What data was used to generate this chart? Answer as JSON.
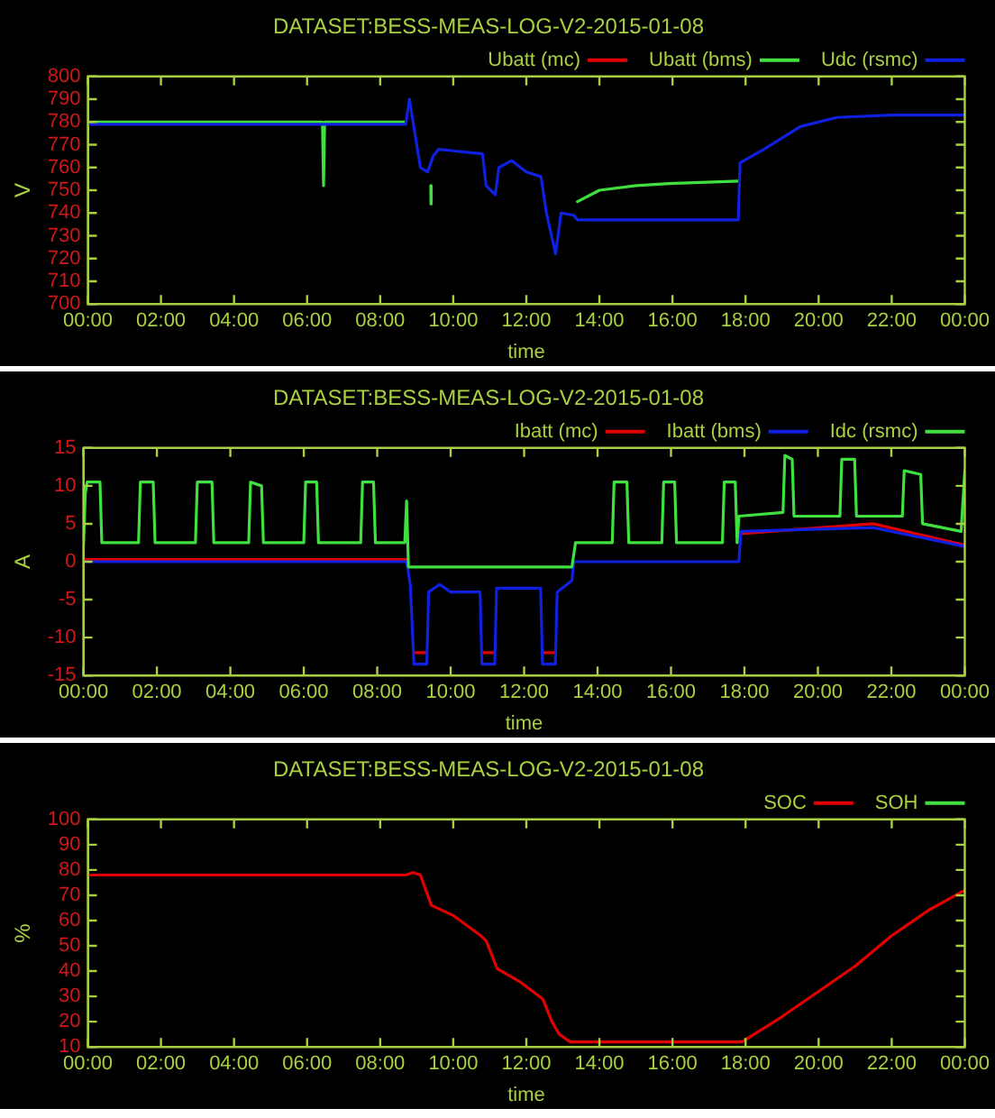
{
  "chart_data": [
    {
      "type": "line",
      "title": "DATASET:BESS-MEAS-LOG-V2-2015-01-08",
      "xlabel": "time",
      "ylabel": "V",
      "xlim": [
        0,
        24
      ],
      "xticks": [
        {
          "value": 0,
          "label": "00:00"
        },
        {
          "value": 2,
          "label": "02:00"
        },
        {
          "value": 4,
          "label": "04:00"
        },
        {
          "value": 6,
          "label": "06:00"
        },
        {
          "value": 8,
          "label": "08:00"
        },
        {
          "value": 10,
          "label": "10:00"
        },
        {
          "value": 12,
          "label": "12:00"
        },
        {
          "value": 14,
          "label": "14:00"
        },
        {
          "value": 16,
          "label": "16:00"
        },
        {
          "value": 18,
          "label": "18:00"
        },
        {
          "value": 20,
          "label": "20:00"
        },
        {
          "value": 22,
          "label": "22:00"
        },
        {
          "value": 24,
          "label": "00:00"
        }
      ],
      "ylim": [
        700,
        800
      ],
      "yticks": [
        700,
        710,
        720,
        730,
        740,
        750,
        760,
        770,
        780,
        790,
        800
      ],
      "grid": false,
      "legend": "top right",
      "marker": "none",
      "line_style": "solid",
      "series": [
        {
          "name": "Ubatt (mc)",
          "color": "#e00000"
        },
        {
          "name": "Ubatt (bms)",
          "color": "#40e040",
          "x": [
            0,
            6.42,
            6.45,
            6.48,
            8.7,
            9,
            9.385,
            9.39,
            9.395,
            11,
            13.4,
            14,
            15,
            16,
            17.8
          ],
          "values": [
            780,
            780,
            752,
            780,
            780,
            null,
            752,
            744,
            752,
            null,
            745,
            750,
            752,
            753,
            754
          ]
        },
        {
          "name": "Udc (rsmc)",
          "color": "#1020e0",
          "x": [
            0,
            8.7,
            8.8,
            8.95,
            9.1,
            9.3,
            9.45,
            9.6,
            10.8,
            10.9,
            11.15,
            11.25,
            11.6,
            12.0,
            12.4,
            12.55,
            12.8,
            12.95,
            13.3,
            13.4,
            17.8,
            17.85,
            18.5,
            19.5,
            20.5,
            22,
            24
          ],
          "values": [
            779,
            779,
            790,
            775,
            760,
            758,
            765,
            768,
            766,
            752,
            748,
            760,
            763,
            758,
            756,
            740,
            722,
            740,
            739,
            737,
            737,
            762,
            768,
            778,
            782,
            783,
            783
          ]
        }
      ]
    },
    {
      "type": "line",
      "title": "DATASET:BESS-MEAS-LOG-V2-2015-01-08",
      "xlabel": "time",
      "ylabel": "A",
      "xlim": [
        0,
        24
      ],
      "xticks": [
        {
          "value": 0,
          "label": "00:00"
        },
        {
          "value": 2,
          "label": "02:00"
        },
        {
          "value": 4,
          "label": "04:00"
        },
        {
          "value": 6,
          "label": "06:00"
        },
        {
          "value": 8,
          "label": "08:00"
        },
        {
          "value": 10,
          "label": "10:00"
        },
        {
          "value": 12,
          "label": "12:00"
        },
        {
          "value": 14,
          "label": "14:00"
        },
        {
          "value": 16,
          "label": "16:00"
        },
        {
          "value": 18,
          "label": "18:00"
        },
        {
          "value": 20,
          "label": "20:00"
        },
        {
          "value": 22,
          "label": "22:00"
        },
        {
          "value": 24,
          "label": "00:00"
        }
      ],
      "ylim": [
        -15,
        15
      ],
      "yticks": [
        -15,
        -10,
        -5,
        0,
        5,
        10,
        15
      ],
      "grid": false,
      "legend": "top right",
      "marker": "none",
      "line_style": "solid",
      "series": [
        {
          "name": "Ibatt (mc)",
          "color": "#e00000",
          "x": [
            0,
            8.8,
            8.9,
            9,
            9.35,
            9.7,
            10.85,
            11.2,
            12,
            12.5,
            12.85,
            13.5,
            17.9,
            21.5,
            24
          ],
          "values": [
            0.3,
            0.3,
            null,
            -12,
            -12,
            null,
            -12,
            -12,
            null,
            -12,
            -12,
            null,
            3.7,
            5,
            2.2
          ]
        },
        {
          "name": "Ibatt (bms)",
          "color": "#1020e0",
          "x": [
            0,
            8.8,
            8.9,
            9,
            9.35,
            9.4,
            9.7,
            10,
            10.8,
            10.85,
            11.2,
            11.25,
            12.45,
            12.5,
            12.85,
            12.9,
            13.3,
            13.35,
            17.85,
            17.9,
            21.5,
            24
          ],
          "values": [
            0,
            0,
            -3,
            -13.5,
            -13.5,
            -4,
            -3,
            -4,
            -4,
            -13.5,
            -13.5,
            -3.5,
            -3.5,
            -13.5,
            -13.5,
            -4,
            -2.5,
            0,
            0,
            4,
            4.5,
            2
          ]
        },
        {
          "name": "Idc (rsmc)",
          "color": "#40e040",
          "x": [
            0,
            0.05,
            0.1,
            0.45,
            0.5,
            1.5,
            1.55,
            1.9,
            1.95,
            3.05,
            3.1,
            3.5,
            3.55,
            4.5,
            4.55,
            4.85,
            4.9,
            6,
            6.05,
            6.35,
            6.4,
            7.55,
            7.6,
            7.9,
            7.95,
            8.75,
            8.8,
            8.85,
            13.3,
            13.4,
            14.4,
            14.45,
            14.8,
            14.85,
            15.75,
            15.8,
            16.1,
            16.15,
            17.4,
            17.45,
            17.75,
            17.8,
            17.85,
            19.05,
            19.1,
            19.3,
            19.35,
            20.6,
            20.65,
            21,
            21.05,
            22.3,
            22.35,
            22.8,
            22.85,
            23.9,
            24
          ],
          "values": [
            2,
            9,
            10.5,
            10.5,
            2.5,
            2.5,
            10.5,
            10.5,
            2.5,
            2.5,
            10.5,
            10.5,
            2.5,
            2.5,
            10.5,
            10,
            2.5,
            2.5,
            10.5,
            10.5,
            2.5,
            2.5,
            10.5,
            10.5,
            2.5,
            2.5,
            8,
            -0.7,
            -0.7,
            2.5,
            2.5,
            10.5,
            10.5,
            2.5,
            2.5,
            10.5,
            10.5,
            2.5,
            2.5,
            10.5,
            10.5,
            2.5,
            6,
            6.5,
            14,
            13.5,
            6,
            6,
            13.5,
            13.5,
            6,
            6,
            12,
            11.5,
            5,
            4,
            12
          ]
        }
      ]
    },
    {
      "type": "line",
      "title": "DATASET:BESS-MEAS-LOG-V2-2015-01-08",
      "xlabel": "time",
      "ylabel": "%",
      "xlim": [
        0,
        24
      ],
      "xticks": [
        {
          "value": 0,
          "label": "00:00"
        },
        {
          "value": 2,
          "label": "02:00"
        },
        {
          "value": 4,
          "label": "04:00"
        },
        {
          "value": 6,
          "label": "06:00"
        },
        {
          "value": 8,
          "label": "08:00"
        },
        {
          "value": 10,
          "label": "10:00"
        },
        {
          "value": 12,
          "label": "12:00"
        },
        {
          "value": 14,
          "label": "14:00"
        },
        {
          "value": 16,
          "label": "16:00"
        },
        {
          "value": 18,
          "label": "18:00"
        },
        {
          "value": 20,
          "label": "20:00"
        },
        {
          "value": 22,
          "label": "22:00"
        },
        {
          "value": 24,
          "label": "00:00"
        }
      ],
      "ylim": [
        10,
        100
      ],
      "yticks": [
        10,
        20,
        30,
        40,
        50,
        60,
        70,
        80,
        90,
        100
      ],
      "grid": false,
      "legend": "top right",
      "marker": "none",
      "line_style": "solid",
      "series": [
        {
          "name": "SOC",
          "color": "#e00000",
          "x": [
            0,
            8.7,
            8.9,
            9.1,
            9.4,
            10,
            10.75,
            10.9,
            11.2,
            11.8,
            12.45,
            12.7,
            12.9,
            13.2,
            17.9,
            19,
            20,
            21,
            22,
            23,
            24
          ],
          "values": [
            78,
            78,
            79,
            78,
            66,
            62,
            54,
            52,
            41,
            36,
            29,
            20,
            15,
            12,
            12,
            22,
            32,
            42,
            54,
            64,
            72
          ]
        },
        {
          "name": "SOH",
          "color": "#40e040"
        }
      ]
    }
  ]
}
